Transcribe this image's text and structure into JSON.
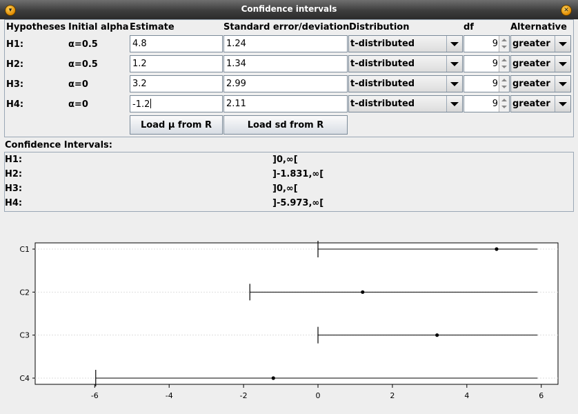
{
  "window": {
    "title": "Confidence intervals"
  },
  "columns": {
    "hypotheses": "Hypotheses",
    "alpha": "Initial alpha",
    "estimate": "Estimate",
    "sd": "Standard error/deviation",
    "distribution": "Distribution",
    "df": "df",
    "alternative": "Alternative"
  },
  "rows": [
    {
      "label": "H1:",
      "alpha": "α=0.5",
      "estimate": "4.8",
      "sd": "1.24",
      "distribution": "t-distributed",
      "df": "9",
      "alternative": "greater"
    },
    {
      "label": "H2:",
      "alpha": "α=0.5",
      "estimate": "1.2",
      "sd": "1.34",
      "distribution": "t-distributed",
      "df": "9",
      "alternative": "greater"
    },
    {
      "label": "H3:",
      "alpha": "α=0",
      "estimate": "3.2",
      "sd": "2.99",
      "distribution": "t-distributed",
      "df": "9",
      "alternative": "greater"
    },
    {
      "label": "H4:",
      "alpha": "α=0",
      "estimate": "-1.2",
      "sd": "2.11",
      "distribution": "t-distributed",
      "df": "9",
      "alternative": "greater"
    }
  ],
  "buttons": {
    "load_mu": "Load μ from R",
    "load_sd": "Load sd from R"
  },
  "results": {
    "heading": "Confidence Intervals:",
    "rows": [
      {
        "label": "H1:",
        "interval": "]0,∞["
      },
      {
        "label": "H2:",
        "interval": "]-1.831,∞["
      },
      {
        "label": "H3:",
        "interval": "]0,∞["
      },
      {
        "label": "H4:",
        "interval": "]-5.973,∞["
      }
    ]
  },
  "chart_data": {
    "type": "scatter",
    "categories": [
      "C1",
      "C2",
      "C3",
      "C4"
    ],
    "intervals": [
      {
        "name": "C1",
        "lower": 0,
        "estimate": 4.8
      },
      {
        "name": "C2",
        "lower": -1.831,
        "estimate": 1.2
      },
      {
        "name": "C3",
        "lower": 0,
        "estimate": 3.2
      },
      {
        "name": "C4",
        "lower": -5.973,
        "estimate": -1.2
      }
    ],
    "upper_shown": 5.9,
    "xlim": [
      -7.6,
      6.45
    ],
    "xticks": [
      -6,
      -4,
      -2,
      0,
      2,
      4,
      6
    ],
    "grid": true,
    "title": "",
    "xlabel": "",
    "ylabel": ""
  }
}
